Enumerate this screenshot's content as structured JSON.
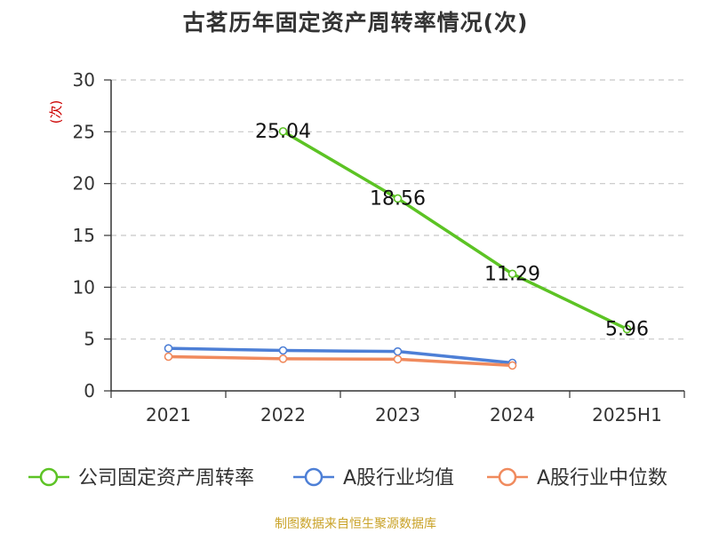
{
  "chart_data": {
    "type": "line",
    "title": "古茗历年固定资产周转率情况(次)",
    "ylabel": "(次)",
    "categories": [
      "2021",
      "2022",
      "2023",
      "2024",
      "2025H1"
    ],
    "ylim": [
      0,
      30
    ],
    "yticks": [
      0,
      5,
      10,
      15,
      20,
      25,
      30
    ],
    "grid": true,
    "legend_position": "bottom",
    "series": [
      {
        "name": "公司固定资产周转率",
        "color": "#5cc324",
        "values": [
          null,
          25.04,
          18.56,
          11.29,
          5.96
        ],
        "labels": [
          "",
          "25.04",
          "18.56",
          "11.29",
          "5.96"
        ]
      },
      {
        "name": "A股行业均值",
        "color": "#4d7fd6",
        "values": [
          4.1,
          3.9,
          3.8,
          2.7,
          null
        ],
        "labels": []
      },
      {
        "name": "A股行业中位数",
        "color": "#f08a5d",
        "values": [
          3.3,
          3.1,
          3.05,
          2.45,
          null
        ],
        "labels": []
      }
    ]
  },
  "footer": {
    "source": "制图数据来自恒生聚源数据库"
  },
  "colors": {
    "axis": "#333333",
    "grid": "#c8c8c8",
    "ylabel": "#cc0000",
    "source": "#c9a227"
  }
}
